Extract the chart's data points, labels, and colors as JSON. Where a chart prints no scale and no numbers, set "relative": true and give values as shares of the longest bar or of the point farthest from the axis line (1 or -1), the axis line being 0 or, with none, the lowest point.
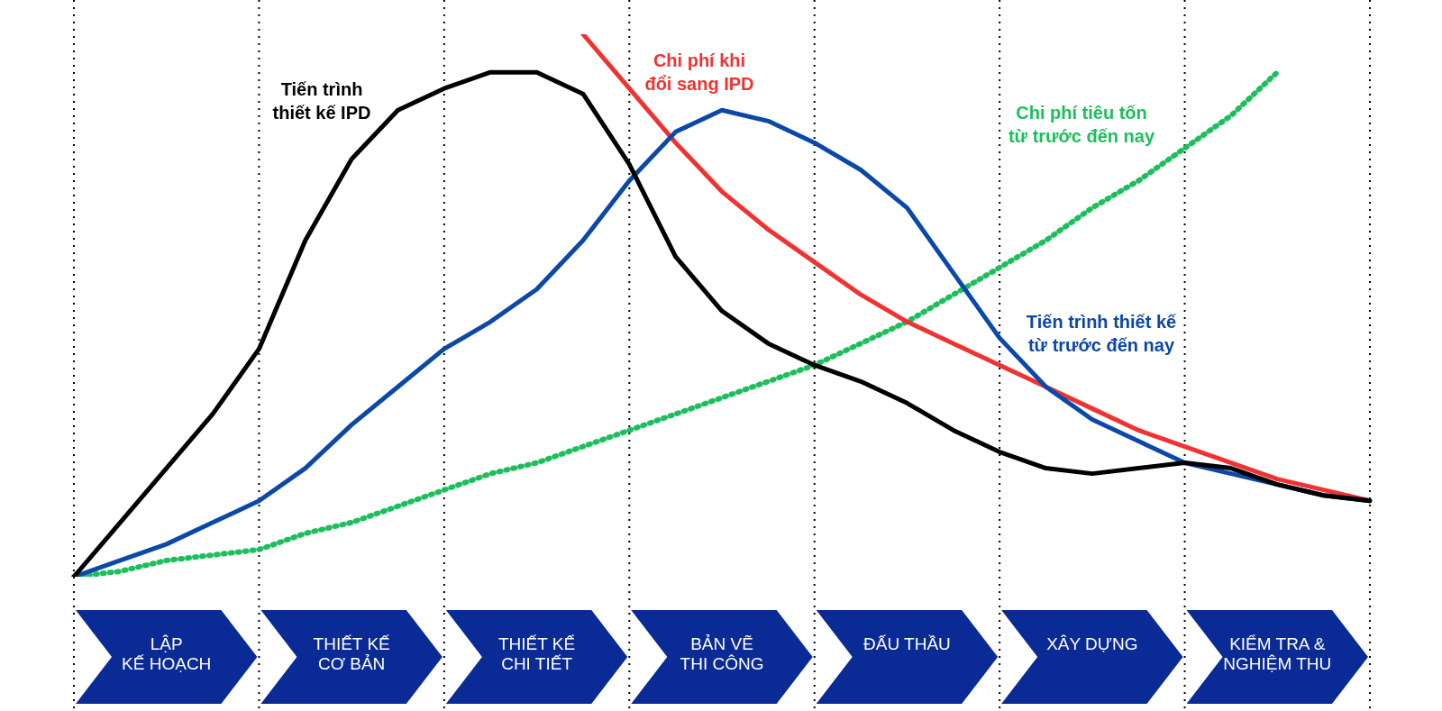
{
  "chart_data": {
    "type": "line",
    "relative": true,
    "legend": false,
    "marker": "none",
    "grid": "x",
    "categories": [
      null,
      null,
      "LẬP\nKẾ HOẠCH",
      null,
      null,
      null,
      "THIẾT KẾ\nCƠ BẢN",
      null,
      null,
      null,
      "THIẾT KẾ\nCHI TIẾT",
      null,
      null,
      null,
      "BẢN VẼ\nTHI CÔNG",
      null,
      null,
      null,
      "ĐẤU THẦU",
      null,
      null,
      null,
      "XÂY DỰNG",
      null,
      null,
      null,
      "KIỂM TRA &\nNGHIỆM THU",
      null,
      null
    ],
    "series": [
      {
        "name": "Tiến trình\nthiết kế IPD",
        "color": "#000000",
        "line_style": "solid",
        "values": [
          0,
          0.1,
          0.2,
          0.3,
          0.42,
          0.62,
          0.77,
          0.86,
          0.9,
          0.93,
          0.93,
          0.89,
          0.76,
          0.59,
          0.49,
          0.43,
          0.39,
          0.36,
          0.32,
          0.27,
          0.23,
          0.2,
          0.19,
          0.2,
          0.21,
          0.2,
          0.17,
          0.15,
          0.14
        ]
      },
      {
        "name": "Tiến trình thiết kế\ntừ trước đến nay",
        "color": "#0b48a8",
        "line_style": "solid",
        "values": [
          0,
          0.03,
          0.06,
          0.1,
          0.14,
          0.2,
          0.28,
          0.35,
          0.42,
          0.47,
          0.53,
          0.62,
          0.73,
          0.82,
          0.86,
          0.84,
          0.8,
          0.75,
          0.68,
          0.56,
          0.44,
          0.35,
          0.29,
          0.25,
          0.21,
          0.19,
          0.17,
          0.15,
          0.14
        ]
      },
      {
        "name": "Chi phí khi\nđổi sang IPD",
        "color": "#f03232",
        "line_style": "solid",
        "values": [
          null,
          null,
          null,
          null,
          null,
          null,
          null,
          null,
          null,
          null,
          null,
          1.0,
          0.9,
          0.8,
          0.71,
          0.64,
          0.58,
          0.52,
          0.47,
          0.43,
          0.39,
          0.35,
          0.31,
          0.27,
          0.24,
          0.21,
          0.18,
          0.16,
          0.14
        ]
      },
      {
        "name": "Chi phí tiêu tốn\ntừ trước đến nay",
        "color": "#1cbf5c",
        "line_style": "dotted",
        "values": [
          0,
          0.01,
          0.03,
          0.04,
          0.05,
          0.08,
          0.1,
          0.13,
          0.16,
          0.19,
          0.21,
          0.24,
          0.27,
          0.3,
          0.33,
          0.36,
          0.39,
          0.43,
          0.47,
          0.52,
          0.57,
          0.62,
          0.68,
          0.73,
          0.79,
          0.85,
          0.93,
          null,
          null
        ]
      }
    ]
  }
}
